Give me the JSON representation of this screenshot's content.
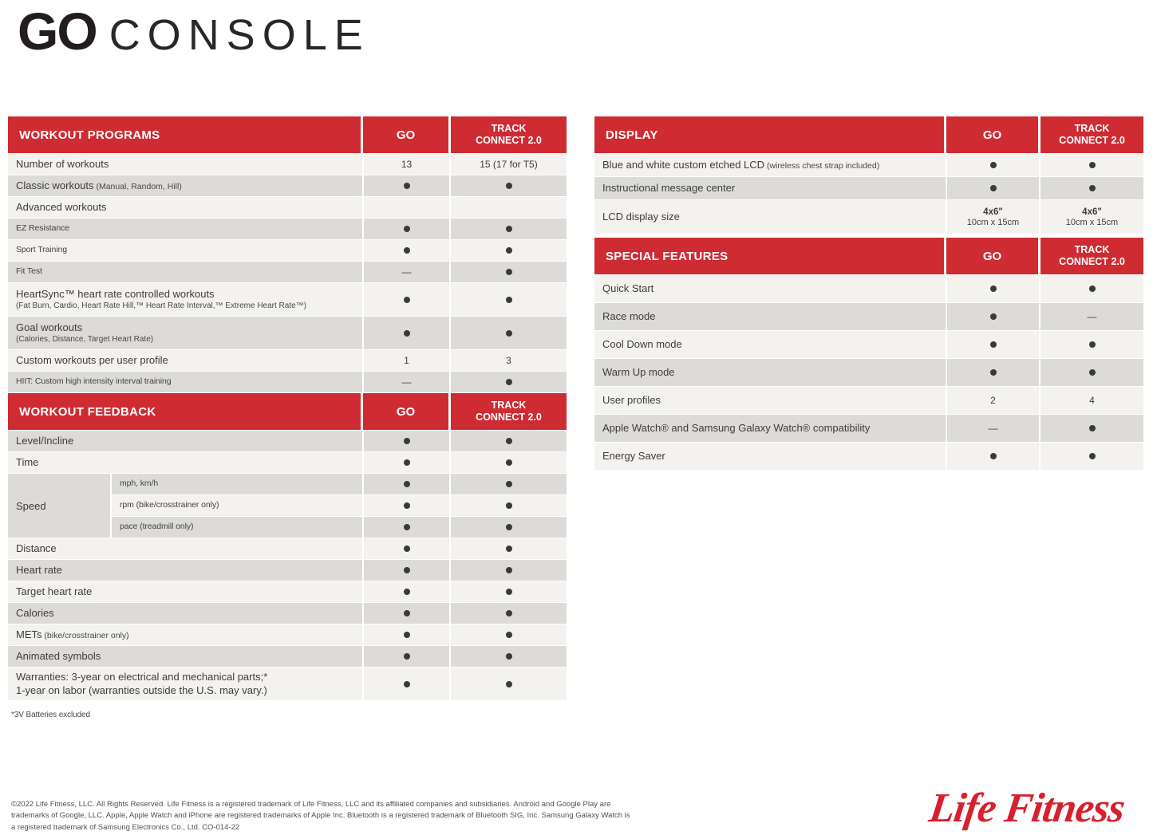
{
  "header": {
    "product": "GO",
    "suffix": "CONSOLE"
  },
  "columns": {
    "go": "GO",
    "track_lines": [
      "TRACK",
      "CONNECT 2.0"
    ]
  },
  "tables": {
    "workout_programs": {
      "title": "WORKOUT PROGRAMS",
      "first_shade": "light",
      "rows": [
        {
          "label": "Number of workouts",
          "go": "13",
          "track": "15 (17 for T5)"
        },
        {
          "label": "Classic workouts",
          "cond": "(Manual, Random, Hill)",
          "go": "●",
          "track": "●"
        },
        {
          "label": "Advanced workouts",
          "go": "",
          "track": ""
        },
        {
          "label": "EZ Resistance",
          "condensed": true,
          "go": "●",
          "track": "●"
        },
        {
          "label": "Sport Training",
          "condensed": true,
          "go": "●",
          "track": "●"
        },
        {
          "label": "Fit Test",
          "condensed": true,
          "go": "—",
          "track": "●"
        },
        {
          "label": "HeartSync™ heart rate controlled workouts",
          "sub": "(Fat Burn, Cardio, Heart Rate Hill,™ Heart Rate Interval,™ Extreme Heart Rate™)",
          "go": "●",
          "track": "●"
        },
        {
          "label": "Goal workouts",
          "sub": "(Calories, Distance, Target Heart Rate)",
          "go": "●",
          "track": "●"
        },
        {
          "label": "Custom workouts per user profile",
          "go": "1",
          "track": "3"
        },
        {
          "label": "HIIT: Custom high intensity interval training",
          "condensed": true,
          "go": "—",
          "track": "●"
        }
      ]
    },
    "workout_feedback": {
      "title": "WORKOUT FEEDBACK",
      "first_shade": "gray",
      "rows": [
        {
          "label": "Level/Incline",
          "go": "●",
          "track": "●"
        },
        {
          "label": "Time",
          "go": "●",
          "track": "●"
        },
        {
          "group": "Speed",
          "subrows": [
            {
              "label": "mph, km/h",
              "go": "●",
              "track": "●"
            },
            {
              "label": "rpm (bike/crosstrainer only)",
              "go": "●",
              "track": "●"
            },
            {
              "label": "pace (treadmill only)",
              "go": "●",
              "track": "●"
            }
          ]
        },
        {
          "label": "Distance",
          "go": "●",
          "track": "●"
        },
        {
          "label": "Heart rate",
          "go": "●",
          "track": "●"
        },
        {
          "label": "Target heart rate",
          "go": "●",
          "track": "●"
        },
        {
          "label": "Calories",
          "go": "●",
          "track": "●"
        },
        {
          "label": "METs",
          "cond": "(bike/crosstrainer only)",
          "go": "●",
          "track": "●"
        },
        {
          "label": "Animated symbols",
          "go": "●",
          "track": "●"
        },
        {
          "label": "Warranties: 3-year on electrical and mechanical parts;*",
          "label2": "1-year on labor (warranties outside the U.S. may vary.)",
          "go": "●",
          "track": "●"
        }
      ]
    },
    "display": {
      "title": "DISPLAY",
      "first_shade": "light",
      "rows": [
        {
          "label": "Blue and white custom etched LCD",
          "cond": "(wireless chest strap included)",
          "go": "●",
          "track": "●"
        },
        {
          "label": "Instructional message center",
          "go": "●",
          "track": "●"
        },
        {
          "label": "LCD display size",
          "go": {
            "bold": "4x6\"",
            "sub": "10cm x 15cm"
          },
          "track": {
            "bold": "4x6\"",
            "sub": "10cm x 15cm"
          }
        }
      ]
    },
    "special_features": {
      "title": "SPECIAL FEATURES",
      "first_shade": "light",
      "rows": [
        {
          "label": "Quick Start",
          "go": "●",
          "track": "●"
        },
        {
          "label": "Race mode",
          "go": "●",
          "track": "—"
        },
        {
          "label": "Cool Down mode",
          "go": "●",
          "track": "●"
        },
        {
          "label": "Warm Up mode",
          "go": "●",
          "track": "●"
        },
        {
          "label": "User profiles",
          "go": "2",
          "track": "4"
        },
        {
          "label": "Apple Watch® and Samsung Galaxy Watch® compatibility",
          "go": "—",
          "track": "●"
        },
        {
          "label": "Energy Saver",
          "go": "●",
          "track": "●"
        }
      ]
    }
  },
  "footnote": "*3V Batteries excluded",
  "footer": {
    "lines": [
      "©2022 Life Fitness, LLC. All Rights Reserved. Life Fitness is a registered trademark of Life Fitness, LLC and its affiliated companies and subsidiaries. Android and Google Play are",
      "trademarks of Google, LLC. Apple, Apple Watch and iPhone are registered trademarks of Apple Inc. Bluetooth is a registered trademark of Bluetooth SIG, Inc. Samsung Galaxy Watch is",
      "a registered trademark of Samsung Electronics Co., Ltd. CO-014-22"
    ]
  },
  "logo_text": "Life Fitness",
  "colors": {
    "header_red": "#CE2B33",
    "row_gray": "#DCDBD8",
    "row_light": "#F3F2EF",
    "text_dark": "#3D3C3A",
    "dot": "#3A3A3A",
    "logo_red": "#D71F2D"
  }
}
